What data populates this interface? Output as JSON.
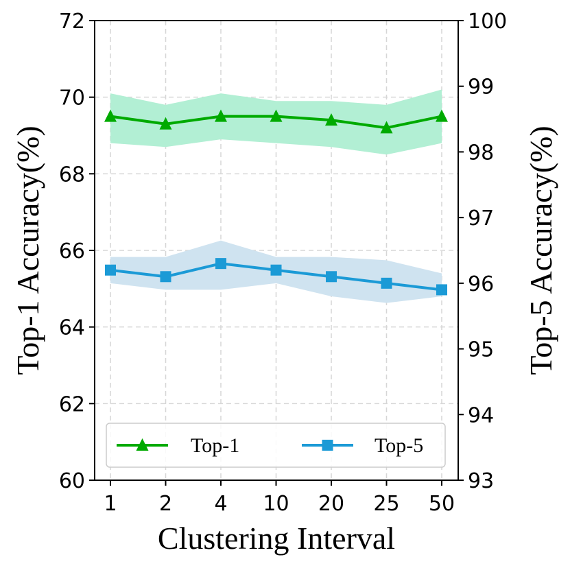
{
  "chart_data": {
    "type": "line",
    "categories": [
      "1",
      "2",
      "4",
      "10",
      "20",
      "25",
      "50"
    ],
    "xlabel": "Clustering Interval",
    "ylabel_left": "Top-1 Accuracy(%)",
    "ylabel_right": "Top-5 Accuracy(%)",
    "ylim_left": [
      60,
      72
    ],
    "yticks_left": [
      "60",
      "62",
      "64",
      "66",
      "68",
      "70",
      "72"
    ],
    "ylim_right": [
      93,
      100
    ],
    "yticks_right": [
      "93",
      "94",
      "95",
      "96",
      "97",
      "98",
      "99",
      "100"
    ],
    "grid": true,
    "legend_position": "bottom",
    "series": [
      {
        "name": "Top-1",
        "axis": "left",
        "marker": "triangle",
        "color": "#00aa00",
        "band_color": "#b2efd4",
        "values": [
          69.5,
          69.3,
          69.5,
          69.5,
          69.4,
          69.2,
          69.5
        ],
        "band_lower": [
          68.8,
          68.7,
          68.9,
          68.8,
          68.7,
          68.5,
          68.8
        ],
        "band_upper": [
          70.1,
          69.8,
          70.1,
          69.9,
          69.9,
          69.8,
          70.2
        ]
      },
      {
        "name": "Top-5",
        "axis": "right",
        "marker": "square",
        "color": "#1b9ad6",
        "band_color": "#cfe3f0",
        "values": [
          96.2,
          96.1,
          96.3,
          96.2,
          96.1,
          96.0,
          95.9
        ],
        "band_lower": [
          96.0,
          95.9,
          95.9,
          96.0,
          95.8,
          95.7,
          95.8
        ],
        "band_upper": [
          96.4,
          96.4,
          96.65,
          96.4,
          96.4,
          96.35,
          96.15
        ]
      }
    ]
  }
}
